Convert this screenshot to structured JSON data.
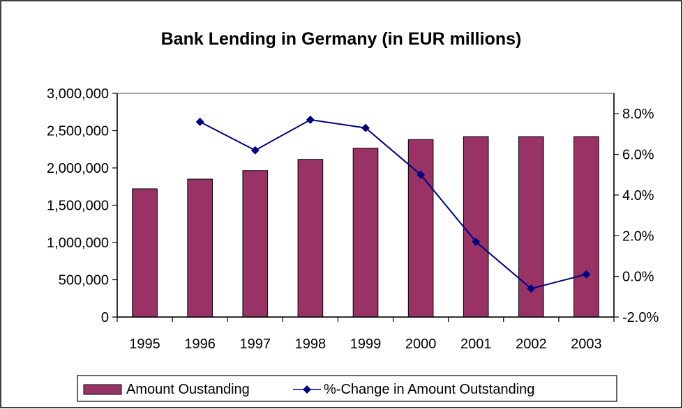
{
  "chart_data": {
    "type": "bar",
    "title": "Bank Lending in Germany (in EUR millions)",
    "categories": [
      "1995",
      "1996",
      "1997",
      "1998",
      "1999",
      "2000",
      "2001",
      "2002",
      "2003"
    ],
    "series": [
      {
        "name": "Amount Oustanding",
        "type": "bar",
        "axis": "left",
        "color": "#993366",
        "values": [
          1720000,
          1850000,
          1965000,
          2115000,
          2265000,
          2380000,
          2420000,
          2420000,
          2420000
        ]
      },
      {
        "name": "%-Change in Amount Outstanding",
        "type": "line",
        "axis": "right",
        "color": "#000080",
        "marker": "diamond",
        "values": [
          null,
          7.6,
          6.2,
          7.7,
          7.3,
          5.0,
          1.7,
          -0.6,
          0.1
        ]
      }
    ],
    "y_left": {
      "ylim": [
        0,
        3000000
      ],
      "ticks": [
        0,
        500000,
        1000000,
        1500000,
        2000000,
        2500000,
        3000000
      ],
      "tick_labels": [
        "0",
        "500,000",
        "1,000,000",
        "1,500,000",
        "2,000,000",
        "2,500,000",
        "3,000,000"
      ]
    },
    "y_right": {
      "ylim": [
        -2.0,
        9.0
      ],
      "ticks": [
        -2,
        0,
        2,
        4,
        6,
        8
      ],
      "tick_labels": [
        "-2.0%",
        "0.0%",
        "2.0%",
        "4.0%",
        "6.0%",
        "8.0%"
      ]
    },
    "grid": false,
    "legend_position": "bottom"
  }
}
